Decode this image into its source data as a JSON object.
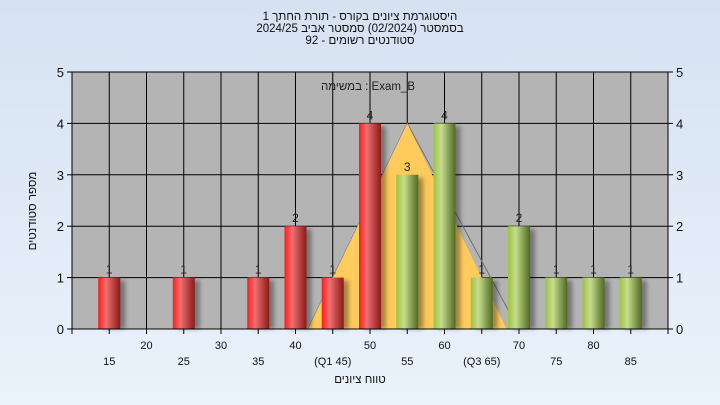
{
  "title": {
    "line1": "היסטוגרמת ציונים בקורס - תורת החתך 1",
    "line2": "בסמסטר  (02/2024)  סמסטר אביב 2024/25",
    "line3": "סטודנטים רשומים - 92"
  },
  "chart_data": {
    "type": "bar",
    "title": "היסטוגרמת ציונים בקורס - תורת החתך 1",
    "annotation": "במשימה : Exam_B",
    "xlabel": "טווח ציונים",
    "ylabel": "מספר סטודנטים",
    "ylim": [
      0,
      5
    ],
    "xlim": [
      10,
      90
    ],
    "yticks": [
      "0",
      "1",
      "2",
      "3",
      "4",
      "5"
    ],
    "xticks_top": [
      "20",
      "30",
      "40",
      "50",
      "60",
      "70",
      "80"
    ],
    "xticks_bottom": [
      "15",
      "25",
      "35",
      "(Q1 45)",
      "55",
      "(Q3 65)",
      "75",
      "85"
    ],
    "grid": true,
    "categories": [
      15,
      25,
      35,
      40,
      45,
      50,
      55,
      60,
      65,
      70,
      75,
      80,
      85
    ],
    "values": [
      1,
      1,
      1,
      2,
      1,
      4,
      3,
      4,
      1,
      2,
      1,
      1,
      1
    ],
    "colors": {
      "below": "#e8262a",
      "above": "#9cc43c",
      "curve": "#ffcb5c",
      "plot_bg": "#b4b4b4"
    },
    "threshold": 50,
    "distribution": {
      "x": [
        41.67,
        55,
        68.33
      ],
      "y": [
        0,
        4,
        0
      ]
    }
  }
}
